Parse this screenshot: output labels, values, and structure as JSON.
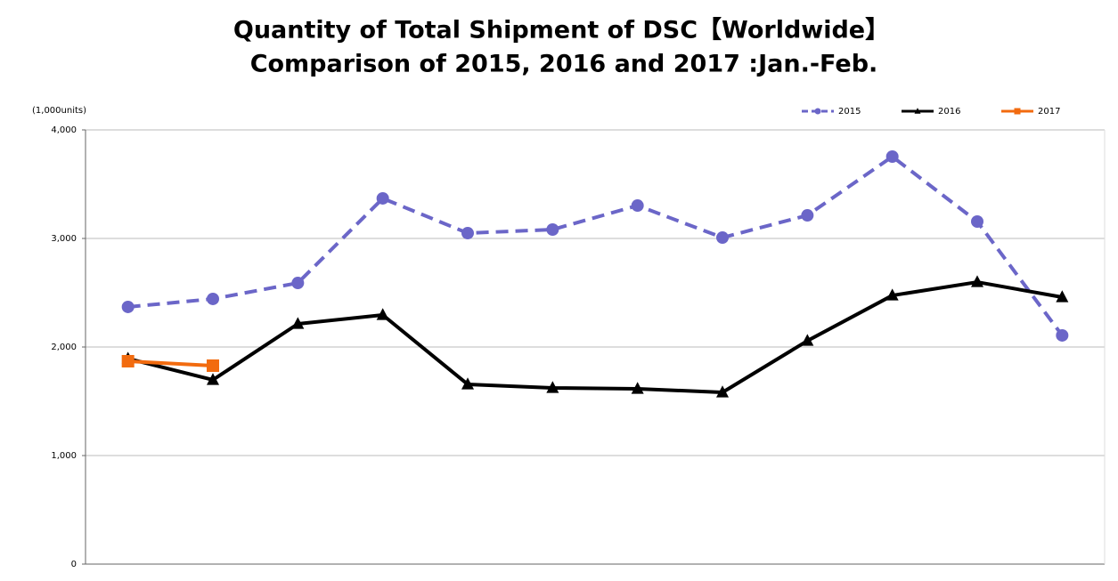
{
  "chart_data": {
    "type": "line",
    "title": "Quantity of Total Shipment of DSC【Worldwide】",
    "subtitle": "Comparison of 2015, 2016 and 2017 :Jan.-Feb.",
    "y_label": "(1,000units)",
    "categories": [
      null,
      null,
      null,
      null,
      null,
      null,
      null,
      null,
      null,
      null,
      null,
      null
    ],
    "series": [
      {
        "name": "2015",
        "color": "#6b66c8",
        "marker": "circle",
        "linestyle": "dashed",
        "values": [
          2369,
          2443,
          2590,
          3369,
          3049,
          3082,
          3303,
          3008,
          3213,
          3754,
          3156,
          2107
        ]
      },
      {
        "name": "2016",
        "color": "#000000",
        "marker": "triangle",
        "linestyle": "solid",
        "values": [
          1893,
          1697,
          2213,
          2295,
          1656,
          1623,
          1615,
          1582,
          2057,
          2475,
          2598,
          2459
        ]
      },
      {
        "name": "2017",
        "color": "#f26b0f",
        "marker": "square",
        "linestyle": "solid",
        "values": [
          1869,
          1828,
          null,
          null,
          null,
          null,
          null,
          null,
          null,
          null,
          null,
          null
        ]
      }
    ],
    "ylim": [
      0,
      4000
    ],
    "yticks": [
      0,
      {
        "value": 1000,
        "label": "1,000"
      },
      {
        "value": 2000,
        "label": "2,000"
      },
      {
        "value": 3000,
        "label": "3,000"
      },
      {
        "value": 4000,
        "label": "4,000"
      }
    ],
    "grid": true,
    "legend": "top-right"
  }
}
